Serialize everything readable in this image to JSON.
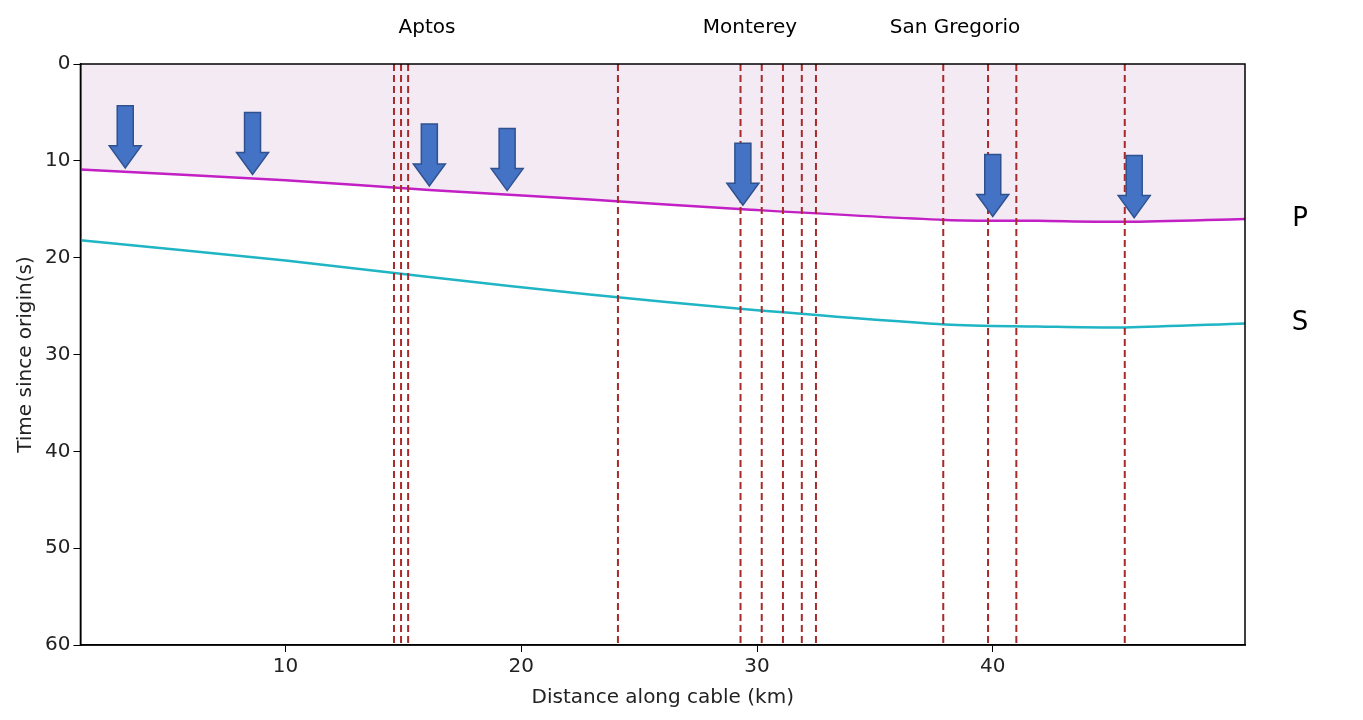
{
  "chart_data": {
    "type": "line",
    "x_label": "Distance along cable (km)",
    "y_label": "Time since origin(s)",
    "x": [
      1.3,
      10,
      16.1,
      22.9,
      29.4,
      38.0,
      41.9,
      45.6,
      50.7
    ],
    "series": [
      {
        "name": "P",
        "color": "#c21fc4",
        "values": [
          10.9,
          12.0,
          13.0,
          14.0,
          15.0,
          16.1,
          16.2,
          16.3,
          16.0
        ]
      },
      {
        "name": "S",
        "color": "#1fb5c4",
        "values": [
          18.2,
          20.3,
          22.0,
          23.8,
          25.3,
          26.9,
          27.1,
          27.2,
          26.8
        ]
      }
    ],
    "xlim": [
      1.3,
      50.7
    ],
    "ylim": [
      60,
      0
    ],
    "xticks": [
      10,
      20,
      30,
      40
    ],
    "yticks": [
      0,
      10,
      20,
      30,
      40,
      50,
      60
    ],
    "grid": false,
    "faults": [
      14.6,
      14.9,
      15.2,
      24.1,
      29.3,
      30.2,
      31.1,
      31.9,
      32.5,
      37.9,
      39.8,
      41.0,
      45.6
    ],
    "arrows": [
      3.2,
      8.6,
      16.1,
      19.4,
      29.4,
      40.0,
      46.0
    ],
    "annotations": [
      {
        "text": "Aptos",
        "x": 16.0
      },
      {
        "text": "Monterey",
        "x": 29.7
      },
      {
        "text": "San Gregorio",
        "x": 38.4
      }
    ]
  }
}
